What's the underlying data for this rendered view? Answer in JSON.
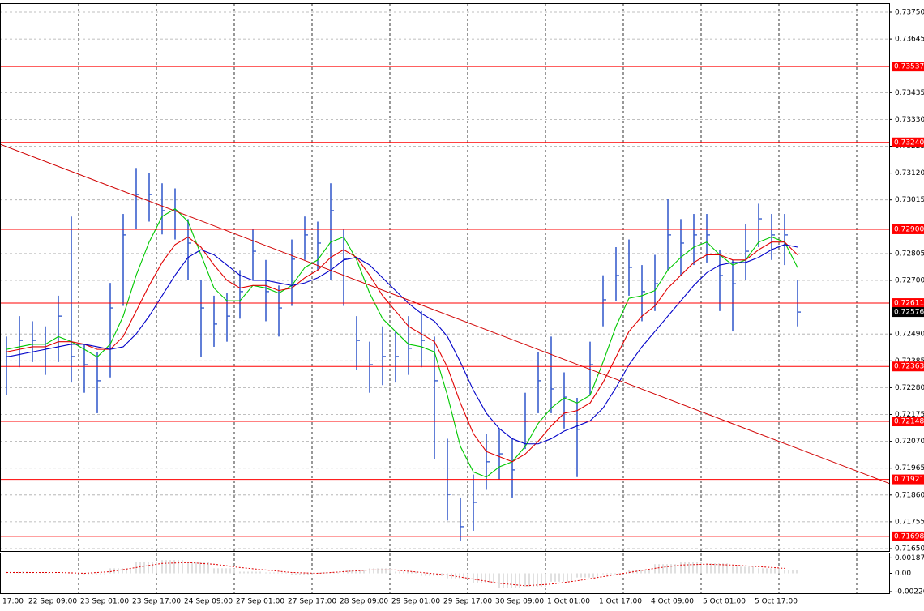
{
  "chart_data": {
    "type": "ohlc",
    "ylim": [
      0.7165,
      0.7375
    ],
    "yticks": [
      {
        "value": 0.7375,
        "label": "0.73750"
      },
      {
        "value": 0.73645,
        "label": "0.73645"
      },
      {
        "value": 0.73435,
        "label": "0.73435"
      },
      {
        "value": 0.7333,
        "label": "0.73330"
      },
      {
        "value": 0.73225,
        "label": "0.73225"
      },
      {
        "value": 0.7312,
        "label": "0.73120"
      },
      {
        "value": 0.73015,
        "label": "0.73015"
      },
      {
        "value": 0.72805,
        "label": "0.72805"
      },
      {
        "value": 0.727,
        "label": "0.72700"
      },
      {
        "value": 0.7249,
        "label": "0.72490"
      },
      {
        "value": 0.72385,
        "label": "0.72385"
      },
      {
        "value": 0.7228,
        "label": "0.72280"
      },
      {
        "value": 0.72175,
        "label": "0.72175"
      },
      {
        "value": 0.7207,
        "label": "0.72070"
      },
      {
        "value": 0.71965,
        "label": "0.71965"
      },
      {
        "value": 0.7186,
        "label": "0.71860"
      },
      {
        "value": 0.71755,
        "label": "0.71755"
      },
      {
        "value": 0.7165,
        "label": "0.71650"
      }
    ],
    "grid": true,
    "x_labels": [
      "17:00",
      "22 Sep 09:00",
      "23 Sep 01:00",
      "23 Sep 17:00",
      "24 Sep 09:00",
      "27 Sep 01:00",
      "27 Sep 17:00",
      "28 Sep 09:00",
      "29 Sep 01:00",
      "29 Sep 17:00",
      "30 Sep 09:00",
      "1 Oct 01:00",
      "1 Oct 17:00",
      "4 Oct 09:00",
      "5 Oct 01:00",
      "5 Oct 17:00"
    ],
    "color": "#3a5fcd",
    "high": [
      0.7248,
      0.7256,
      0.7254,
      0.7252,
      0.7264,
      0.7295,
      0.7245,
      0.7242,
      0.7269,
      0.7296,
      0.7314,
      0.7312,
      0.7308,
      0.7306,
      0.7294,
      0.727,
      0.7264,
      0.7265,
      0.7274,
      0.729,
      0.7278,
      0.7268,
      0.7286,
      0.7295,
      0.7293,
      0.7308,
      0.729,
      0.7256,
      0.7246,
      0.7252,
      0.725,
      0.7256,
      0.7258,
      0.7248,
      0.7208,
      0.7185,
      0.7194,
      0.721,
      0.7212,
      0.7208,
      0.7226,
      0.7242,
      0.7248,
      0.7234,
      0.7224,
      0.7246,
      0.7272,
      0.7283,
      0.7286,
      0.7276,
      0.728,
      0.7302,
      0.7294,
      0.7296,
      0.7296,
      0.7282,
      0.7278,
      0.7292,
      0.73,
      0.7296,
      0.7296,
      0.727
    ],
    "low": [
      0.7225,
      0.7236,
      0.7238,
      0.7233,
      0.7238,
      0.723,
      0.7226,
      0.7218,
      0.7232,
      0.726,
      0.729,
      0.7293,
      0.7288,
      0.7286,
      0.727,
      0.724,
      0.7244,
      0.7246,
      0.7255,
      0.727,
      0.7254,
      0.7248,
      0.726,
      0.7278,
      0.7274,
      0.727,
      0.726,
      0.7235,
      0.7226,
      0.7229,
      0.723,
      0.7233,
      0.7236,
      0.72,
      0.7176,
      0.7168,
      0.7172,
      0.7188,
      0.7192,
      0.7185,
      0.7204,
      0.7218,
      0.7218,
      0.7212,
      0.7193,
      0.7225,
      0.7252,
      0.7262,
      0.7264,
      0.7254,
      0.7258,
      0.7274,
      0.7272,
      0.7276,
      0.7277,
      0.7258,
      0.725,
      0.727,
      0.7283,
      0.7278,
      0.7276,
      0.7252
    ],
    "close": [
      0.72402,
      0.72465,
      0.72465,
      0.72434,
      0.7256,
      0.72402,
      0.7237,
      0.72307,
      0.72592,
      0.72878,
      0.73036,
      0.73036,
      0.72973,
      0.72973,
      0.72846,
      0.72592,
      0.72529,
      0.7256,
      0.72656,
      0.72814,
      0.72656,
      0.72592,
      0.72783,
      0.72878,
      0.72846,
      0.72973,
      0.72783,
      0.72465,
      0.7237,
      0.72402,
      0.72402,
      0.72434,
      0.72465,
      0.72307,
      0.71863,
      0.71736,
      0.71831,
      0.7199,
      0.72021,
      0.71958,
      0.72148,
      0.72307,
      0.72275,
      0.72243,
      0.72117,
      0.7237,
      0.72624,
      0.72719,
      0.72751,
      0.72656,
      0.72687,
      0.72878,
      0.72846,
      0.72878,
      0.72878,
      0.72719,
      0.72687,
      0.72814,
      0.72941,
      0.72878,
      0.72878,
      0.72576
    ],
    "ma": [
      {
        "color": "#00c800",
        "values": [
          0.7243,
          0.7244,
          0.7245,
          0.7245,
          0.7248,
          0.7246,
          0.7243,
          0.724,
          0.7245,
          0.7256,
          0.7272,
          0.7285,
          0.7295,
          0.7298,
          0.7293,
          0.728,
          0.7267,
          0.7262,
          0.7262,
          0.7268,
          0.7267,
          0.7265,
          0.7268,
          0.7275,
          0.7278,
          0.7285,
          0.7287,
          0.7278,
          0.7265,
          0.7255,
          0.725,
          0.7245,
          0.7244,
          0.7242,
          0.7225,
          0.7205,
          0.7195,
          0.7193,
          0.7197,
          0.7199,
          0.7205,
          0.7214,
          0.722,
          0.7224,
          0.7222,
          0.7225,
          0.7238,
          0.7252,
          0.7263,
          0.7264,
          0.7266,
          0.7274,
          0.7279,
          0.7283,
          0.7285,
          0.728,
          0.7276,
          0.7278,
          0.7285,
          0.7287,
          0.7285,
          0.7275
        ]
      },
      {
        "color": "#e00000",
        "values": [
          0.7242,
          0.7243,
          0.7244,
          0.7244,
          0.7246,
          0.7246,
          0.7245,
          0.7243,
          0.7243,
          0.7248,
          0.7258,
          0.7268,
          0.7277,
          0.7284,
          0.7287,
          0.7283,
          0.7276,
          0.727,
          0.7267,
          0.7268,
          0.7268,
          0.7266,
          0.7267,
          0.7271,
          0.7274,
          0.7279,
          0.7282,
          0.7279,
          0.7272,
          0.7264,
          0.7258,
          0.7252,
          0.7249,
          0.7246,
          0.7236,
          0.7222,
          0.721,
          0.7203,
          0.7201,
          0.7199,
          0.7202,
          0.7207,
          0.7213,
          0.7218,
          0.7219,
          0.7222,
          0.723,
          0.724,
          0.725,
          0.7256,
          0.726,
          0.7267,
          0.7272,
          0.7277,
          0.728,
          0.728,
          0.7278,
          0.7278,
          0.7282,
          0.7285,
          0.7285,
          0.728
        ]
      },
      {
        "color": "#0000c8",
        "values": [
          0.724,
          0.7241,
          0.7242,
          0.7243,
          0.7244,
          0.7245,
          0.7245,
          0.7244,
          0.7243,
          0.7244,
          0.7249,
          0.7256,
          0.7264,
          0.7272,
          0.7279,
          0.7282,
          0.728,
          0.7276,
          0.7272,
          0.727,
          0.727,
          0.7269,
          0.7268,
          0.7269,
          0.7271,
          0.7274,
          0.7278,
          0.7279,
          0.7276,
          0.7271,
          0.7266,
          0.7261,
          0.7257,
          0.7254,
          0.7248,
          0.7238,
          0.7227,
          0.7218,
          0.7212,
          0.7208,
          0.7206,
          0.7206,
          0.7208,
          0.7211,
          0.7213,
          0.7215,
          0.722,
          0.7228,
          0.7237,
          0.7244,
          0.725,
          0.7256,
          0.7262,
          0.7268,
          0.7273,
          0.7276,
          0.7277,
          0.7277,
          0.7279,
          0.7282,
          0.7284,
          0.7283
        ]
      }
    ],
    "levels": [
      {
        "value": 0.73537,
        "label": "0.73537"
      },
      {
        "value": 0.7324,
        "label": "0.73240"
      },
      {
        "value": 0.729,
        "label": "0.72900"
      },
      {
        "value": 0.72611,
        "label": "0.72611"
      },
      {
        "value": 0.72363,
        "label": "0.72363"
      },
      {
        "value": 0.72148,
        "label": "0.72148"
      },
      {
        "value": 0.71921,
        "label": "0.71921"
      },
      {
        "value": 0.71698,
        "label": "0.71698"
      }
    ],
    "level_color": "#ff0000",
    "current_price": {
      "value": 0.72576,
      "label": "0.72576"
    },
    "trendline": {
      "start": 0.73233,
      "end": 0.71904,
      "color": "#d00000"
    },
    "oscillator": {
      "ylim": [
        -0.0024,
        0.0024
      ],
      "yticks": [
        0.001873,
        {
          "value": 0,
          "label": "0.00"
        },
        {
          "value": -0.0022,
          "label": "-0.00220"
        }
      ],
      "histogram": [
        0.0002,
        0.0001,
        0.0,
        -0.0001,
        0.0006,
        0.0014,
        0.0016,
        0.0014,
        0.0006,
        0.0002,
        0.0001,
        -0.0002,
        0.0001,
        0.0004,
        0.0006,
        0.0002,
        -0.0003,
        -0.0006,
        -0.0012,
        -0.0018,
        -0.0016,
        -0.001,
        -0.0005,
        -0.0001,
        0.0004,
        0.0011,
        0.0014,
        0.0012,
        0.0008,
        0.0006,
        0.0004
      ],
      "signal": [
        0.0001,
        0.0001,
        0.0001,
        0.0,
        0.0002,
        0.0007,
        0.0012,
        0.0013,
        0.0011,
        0.0007,
        0.0004,
        0.0001,
        0.0,
        0.0002,
        0.0004,
        0.0004,
        0.0001,
        -0.0002,
        -0.0007,
        -0.0012,
        -0.0015,
        -0.0013,
        -0.0009,
        -0.0004,
        0.0001,
        0.0006,
        0.001,
        0.0011,
        0.001,
        0.0008,
        0.0006
      ],
      "color": "#c0c0c0",
      "signal_color": "#e00000"
    }
  }
}
